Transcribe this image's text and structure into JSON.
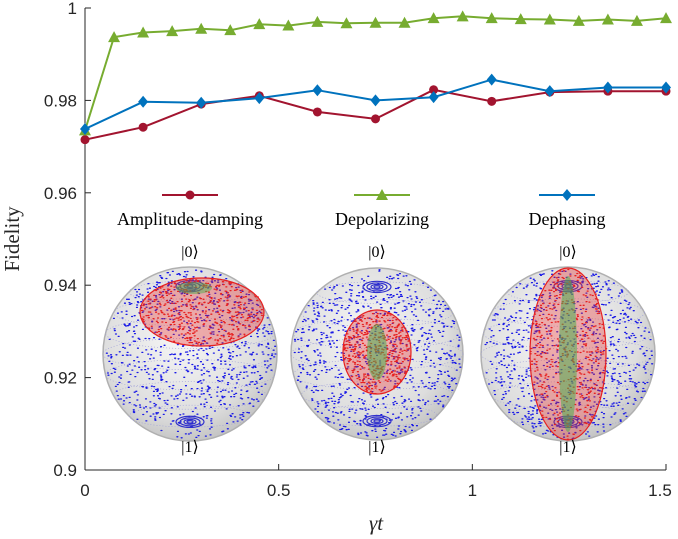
{
  "chart_data": {
    "type": "line",
    "title": "",
    "xlabel": "γt",
    "ylabel": "Fidelity",
    "xlim": [
      0,
      1.5
    ],
    "ylim": [
      0.9,
      1.0
    ],
    "xticks": [
      0,
      0.5,
      1,
      1.5
    ],
    "xtick_labels": [
      "0",
      "0.5",
      "1",
      "1.5"
    ],
    "yticks": [
      0.9,
      0.92,
      0.94,
      0.96,
      0.98,
      1.0
    ],
    "ytick_labels": [
      "0.9",
      "0.92",
      "0.94",
      "0.96",
      "0.98",
      "1"
    ],
    "grid": false,
    "series": [
      {
        "name": "Amplitude-damping",
        "color": "#A2142F",
        "marker": "circle",
        "x": [
          0,
          0.15,
          0.3,
          0.45,
          0.6,
          0.75,
          0.9,
          1.05,
          1.2,
          1.35,
          1.5
        ],
        "y": [
          0.9715,
          0.9742,
          0.9792,
          0.981,
          0.9775,
          0.976,
          0.9823,
          0.9798,
          0.9818,
          0.982,
          0.982
        ]
      },
      {
        "name": "Depolarizing",
        "color": "#77AC30",
        "marker": "triangle",
        "x": [
          0,
          0.075,
          0.15,
          0.225,
          0.3,
          0.375,
          0.45,
          0.525,
          0.6,
          0.675,
          0.75,
          0.825,
          0.9,
          0.975,
          1.05,
          1.125,
          1.2,
          1.275,
          1.35,
          1.425,
          1.5
        ],
        "y": [
          0.9735,
          0.9937,
          0.9947,
          0.995,
          0.9955,
          0.9952,
          0.9965,
          0.9962,
          0.997,
          0.9967,
          0.9968,
          0.9968,
          0.9978,
          0.9982,
          0.9978,
          0.9976,
          0.9975,
          0.9972,
          0.9975,
          0.9972,
          0.9978
        ]
      },
      {
        "name": "Dephasing",
        "color": "#0072BD",
        "marker": "diamond",
        "x": [
          0,
          0.15,
          0.3,
          0.45,
          0.6,
          0.75,
          0.9,
          1.05,
          1.2,
          1.35,
          1.5
        ],
        "y": [
          0.9738,
          0.9797,
          0.9795,
          0.9805,
          0.9822,
          0.98,
          0.9807,
          0.9845,
          0.982,
          0.9828,
          0.9828
        ]
      }
    ],
    "insets": [
      {
        "name": "Amplitude-damping",
        "top_label": "|0⟩",
        "bottom_label": "|1⟩"
      },
      {
        "name": "Depolarizing",
        "top_label": "|0⟩",
        "bottom_label": "|1⟩"
      },
      {
        "name": "Dephasing",
        "top_label": "|0⟩",
        "bottom_label": "|1⟩"
      }
    ]
  },
  "colors": {
    "axis": "#262626",
    "sphere_points": "#1a1ae6",
    "ellipsoid_points": "#e62020",
    "inner_points": "#4caf50"
  }
}
